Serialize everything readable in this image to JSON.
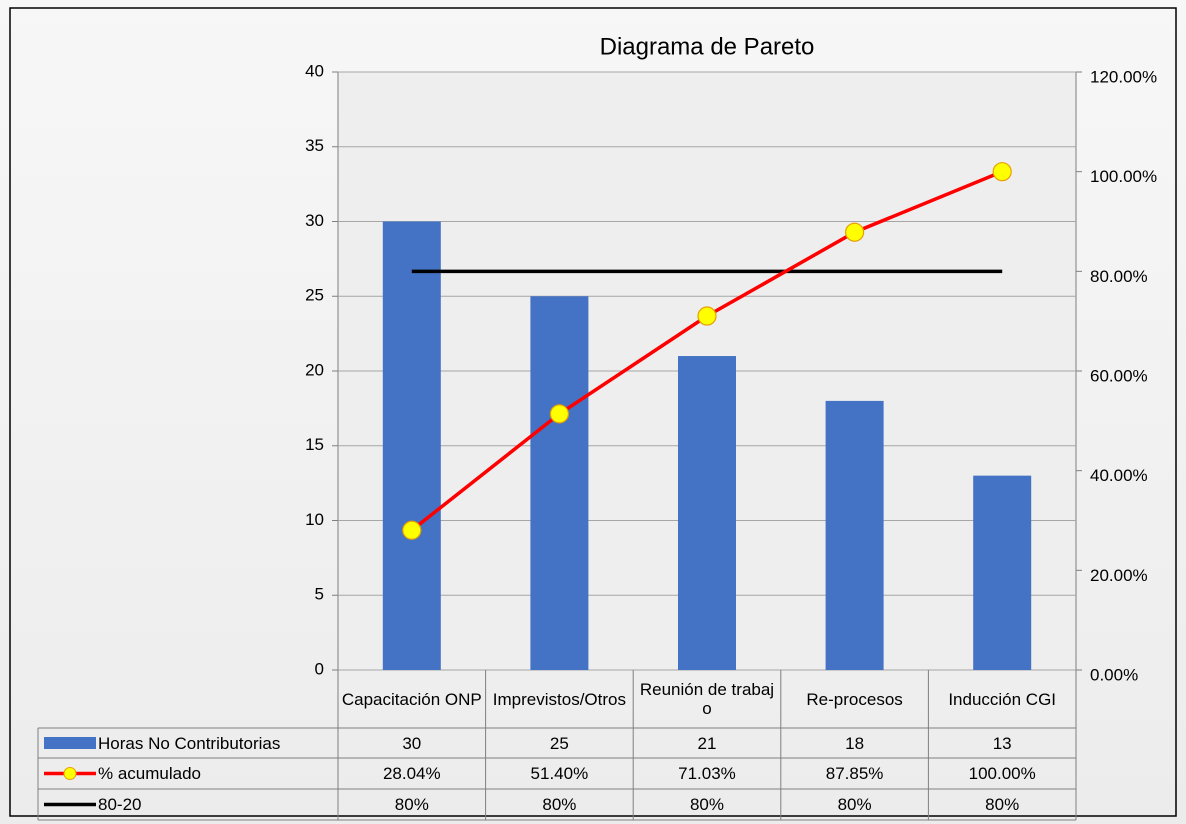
{
  "chart_data": {
    "type": "pareto",
    "title": "Diagrama de Pareto",
    "categories": [
      "Capacitación ONP",
      "Imprevistos/Otros",
      "Reunión de trabajo",
      "Re-procesos",
      "Inducción CGI"
    ],
    "series": [
      {
        "name": "Horas No Contributorias",
        "type": "bar",
        "color": "#4472c4",
        "values": [
          30,
          25,
          21,
          18,
          13
        ]
      },
      {
        "name": "% acumulado",
        "type": "line",
        "axis": "y2",
        "color": "#ff0000",
        "marker_color": "#ffff00",
        "values": [
          28.04,
          51.4,
          71.03,
          87.85,
          100
        ],
        "value_labels": [
          "28.04%",
          "51.40%",
          "71.03%",
          "87.85%",
          "100.00%"
        ]
      },
      {
        "name": "80-20",
        "type": "line",
        "axis": "y2",
        "color": "#000000",
        "values": [
          80,
          80,
          80,
          80,
          80
        ],
        "value_labels": [
          "80%",
          "80%",
          "80%",
          "80%",
          "80%"
        ]
      }
    ],
    "ylim": [
      0,
      40
    ],
    "yticks": [
      0,
      5,
      10,
      15,
      20,
      25,
      30,
      35,
      40
    ],
    "y2lim": [
      0,
      120
    ],
    "y2ticks": [
      {
        "value": 0,
        "label": "0.00%"
      },
      {
        "value": 20,
        "label": "20.00%"
      },
      {
        "value": 40,
        "label": "40.00%"
      },
      {
        "value": 60,
        "label": "60.00%"
      },
      {
        "value": 80,
        "label": "80.00%"
      },
      {
        "value": 100,
        "label": "100.00%"
      },
      {
        "value": 120,
        "label": "120.00%"
      }
    ],
    "grid": true,
    "data_table": true
  }
}
